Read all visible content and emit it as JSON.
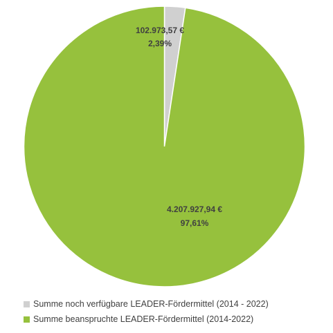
{
  "chart_data": {
    "type": "pie",
    "series": [
      {
        "name": "Summe noch verfügbare LEADER-Fördermittel (2014 - 2022)",
        "value": 102973.57,
        "percent": 2.39,
        "amount_label": "102.973,57 €",
        "percent_label": "2,39%",
        "color": "#d0d0d0"
      },
      {
        "name": "Summe beanspruchte LEADER-Fördermittel (2014-2022)",
        "value": 4207927.94,
        "percent": 97.61,
        "amount_label": "4.207.927,94 €",
        "percent_label": "97,61%",
        "color": "#96c13d"
      }
    ],
    "legend_position": "bottom"
  }
}
